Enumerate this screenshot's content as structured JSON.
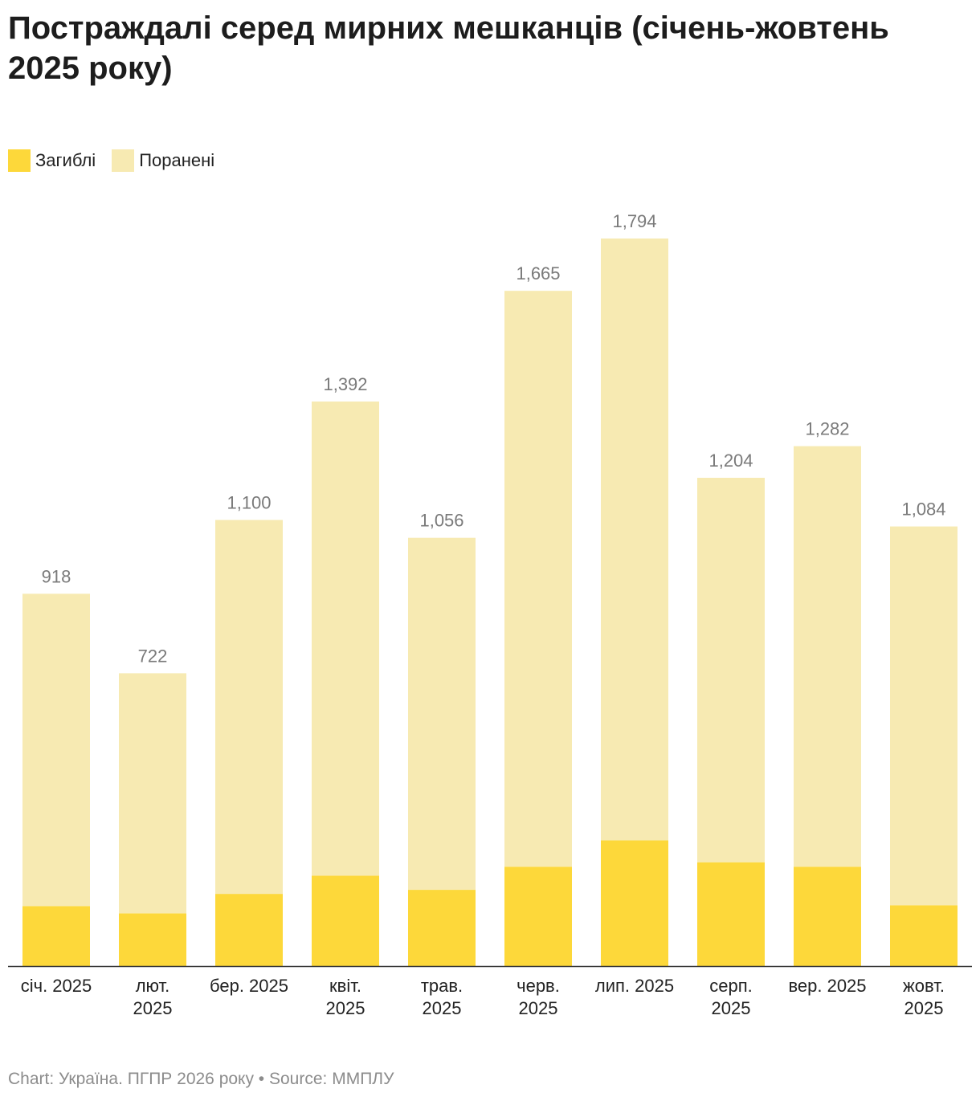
{
  "chart_data": {
    "type": "bar",
    "stacked": true,
    "title": "Постраждалі серед мирних мешканців (січень-жовтень 2025 року)",
    "categories": [
      [
        "січ. 2025"
      ],
      [
        "лют.",
        "2025"
      ],
      [
        "бер. 2025"
      ],
      [
        "квіт.",
        "2025"
      ],
      [
        "трав.",
        "2025"
      ],
      [
        "черв.",
        "2025"
      ],
      [
        "лип. 2025"
      ],
      [
        "серп.",
        "2025"
      ],
      [
        "вер. 2025"
      ],
      [
        "жовт.",
        "2025"
      ]
    ],
    "series": [
      {
        "name": "Загиблі",
        "color": "#fdd83a",
        "values": [
          148,
          130,
          178,
          223,
          188,
          245,
          310,
          256,
          245,
          150
        ]
      },
      {
        "name": "Поранені",
        "color": "#f7eab2",
        "values": [
          770,
          592,
          922,
          1169,
          868,
          1420,
          1484,
          948,
          1037,
          934
        ]
      }
    ],
    "totals": [
      918,
      722,
      1100,
      1392,
      1056,
      1665,
      1794,
      1204,
      1282,
      1084
    ],
    "total_labels": [
      "918",
      "722",
      "1,100",
      "1,392",
      "1,056",
      "1,665",
      "1,794",
      "1,204",
      "1,282",
      "1,084"
    ],
    "ylim": [
      0,
      1794
    ],
    "grid": false,
    "legend_position": "top-left",
    "axis_color": "#333333",
    "label_color": "#7a7a7a"
  },
  "footer": {
    "text": "Chart: Україна. ПГПР 2026 року • Source: ММПЛУ"
  }
}
